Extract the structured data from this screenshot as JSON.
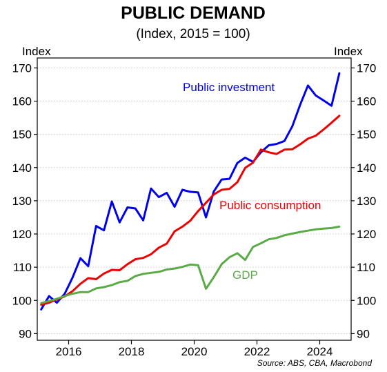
{
  "chart_data": {
    "type": "line",
    "title": "PUBLIC DEMAND",
    "subtitle": "(Index, 2015 = 100)",
    "y_unit_left": "Index",
    "y_unit_right": "Index",
    "source": "Source: ABS, CBA, Macrobond",
    "xlim": [
      2015.0,
      2025.0
    ],
    "ylim": [
      88,
      173
    ],
    "x_ticks": [
      2016,
      2018,
      2020,
      2022,
      2024
    ],
    "x_tick_labels": [
      "2016",
      "2018",
      "2020",
      "2022",
      "2024"
    ],
    "y_ticks": [
      90,
      100,
      110,
      120,
      130,
      140,
      150,
      160,
      170
    ],
    "y_tick_labels": [
      "90",
      "100",
      "110",
      "120",
      "130",
      "140",
      "150",
      "160",
      "170"
    ],
    "grid": "horizontal dotted",
    "legend": "direct labels",
    "series": [
      {
        "name": "Public investment",
        "color": "#0000ee",
        "x": [
          2015.125,
          2015.375,
          2015.625,
          2015.875,
          2016.125,
          2016.375,
          2016.625,
          2016.875,
          2017.125,
          2017.375,
          2017.625,
          2017.875,
          2018.125,
          2018.375,
          2018.625,
          2018.875,
          2019.125,
          2019.375,
          2019.625,
          2019.875,
          2020.125,
          2020.375,
          2020.625,
          2020.875,
          2021.125,
          2021.375,
          2021.625,
          2021.875,
          2022.125,
          2022.375,
          2022.625,
          2022.875,
          2023.125,
          2023.375,
          2023.625,
          2023.875,
          2024.125,
          2024.375,
          2024.625
        ],
        "y": [
          97.3,
          101.3,
          99.3,
          102.0,
          106.9,
          112.7,
          110.3,
          122.4,
          121.1,
          129.8,
          123.5,
          128.0,
          127.7,
          124.1,
          133.7,
          131.1,
          132.4,
          128.2,
          133.3,
          132.7,
          132.5,
          125.0,
          132.8,
          136.4,
          136.6,
          141.4,
          143.0,
          141.7,
          144.6,
          146.7,
          147.1,
          148.0,
          152.4,
          158.9,
          164.7,
          161.7,
          160.2,
          158.6,
          168.4
        ]
      },
      {
        "name": "Public consumption",
        "color": "#ee0000",
        "x": [
          2015.125,
          2015.375,
          2015.625,
          2015.875,
          2016.125,
          2016.375,
          2016.625,
          2016.875,
          2017.125,
          2017.375,
          2017.625,
          2017.875,
          2018.125,
          2018.375,
          2018.625,
          2018.875,
          2019.125,
          2019.375,
          2019.625,
          2019.875,
          2020.125,
          2020.375,
          2020.625,
          2020.875,
          2021.125,
          2021.375,
          2021.625,
          2021.875,
          2022.125,
          2022.375,
          2022.625,
          2022.875,
          2023.125,
          2023.375,
          2023.625,
          2023.875,
          2024.125,
          2024.375,
          2024.625
        ],
        "y": [
          98.7,
          99.3,
          100.3,
          101.2,
          102.8,
          105.0,
          106.7,
          106.4,
          108.1,
          109.2,
          109.1,
          110.9,
          112.4,
          112.8,
          113.9,
          115.9,
          117.1,
          120.8,
          122.2,
          124.0,
          126.9,
          129.4,
          131.9,
          133.3,
          133.6,
          135.6,
          139.9,
          141.5,
          145.4,
          144.6,
          144.1,
          145.4,
          145.5,
          147.0,
          148.7,
          149.6,
          151.5,
          153.5,
          155.6
        ]
      },
      {
        "name": "GDP",
        "color": "#5aaa46",
        "x": [
          2015.125,
          2015.375,
          2015.625,
          2015.875,
          2016.125,
          2016.375,
          2016.625,
          2016.875,
          2017.125,
          2017.375,
          2017.625,
          2017.875,
          2018.125,
          2018.375,
          2018.625,
          2018.875,
          2019.125,
          2019.375,
          2019.625,
          2019.875,
          2020.125,
          2020.375,
          2020.625,
          2020.875,
          2021.125,
          2021.375,
          2021.625,
          2021.875,
          2022.125,
          2022.375,
          2022.625,
          2022.875,
          2023.125,
          2023.375,
          2023.625,
          2023.875,
          2024.125,
          2024.375,
          2024.625
        ],
        "y": [
          99.2,
          99.8,
          100.5,
          101.3,
          102.0,
          102.5,
          102.5,
          103.6,
          104.0,
          104.6,
          105.5,
          105.9,
          107.3,
          108.0,
          108.3,
          108.6,
          109.3,
          109.6,
          110.1,
          110.8,
          110.6,
          103.5,
          107.0,
          110.9,
          113.0,
          114.2,
          112.2,
          116.1,
          117.2,
          118.4,
          118.8,
          119.6,
          120.1,
          120.6,
          121.0,
          121.4,
          121.6,
          121.8,
          122.2
        ]
      }
    ],
    "label_positions": {
      "Public investment": [
        2020.7,
        125.6
      ],
      "Public consumption": [
        2020.5,
        99.8
      ],
      "GDP": [
        2021.3,
        89.5
      ]
    }
  }
}
